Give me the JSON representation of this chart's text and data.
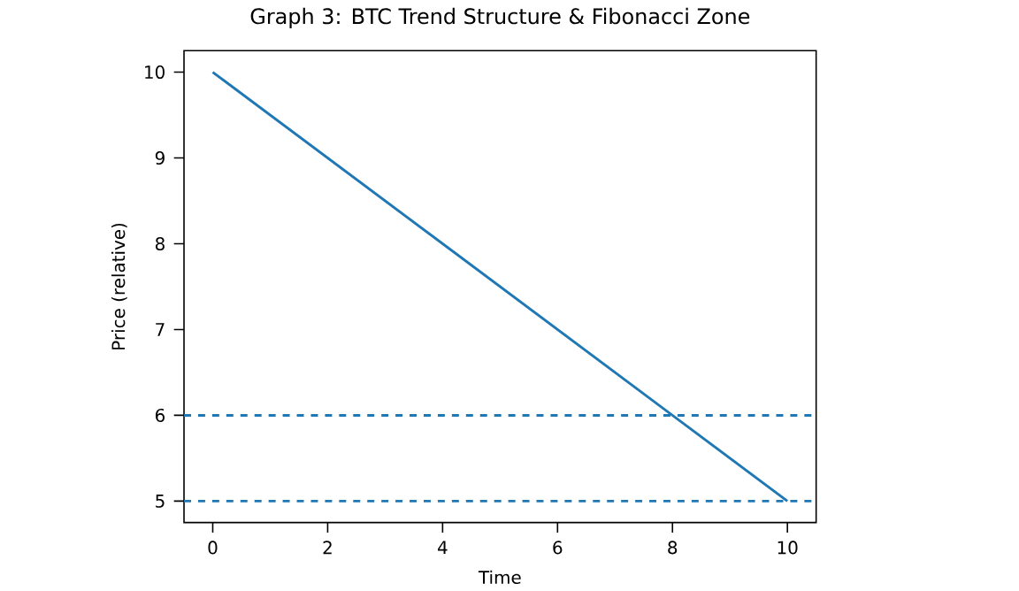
{
  "chart_data": {
    "type": "line",
    "title": "Graph 3: BTC Trend Structure & Fibonacci Zone",
    "xlabel": "Time",
    "ylabel": "Price (relative)",
    "series": [
      {
        "color": "#1f77b4",
        "x": [
          0,
          10
        ],
        "values": [
          10,
          5
        ]
      }
    ],
    "ref_lines": [
      {
        "axis": "y",
        "value": 6,
        "color": "#1f77b4",
        "line_style": "dashed"
      },
      {
        "axis": "y",
        "value": 5,
        "color": "#1f77b4",
        "line_style": "dashed"
      }
    ],
    "xlim": [
      -0.5,
      10.5
    ],
    "ylim": [
      4.75,
      10.25
    ],
    "xticks": [
      0,
      2,
      4,
      6,
      8,
      10
    ],
    "yticks": [
      5,
      6,
      7,
      8,
      9,
      10
    ],
    "line_style": "solid",
    "marker": "none"
  }
}
